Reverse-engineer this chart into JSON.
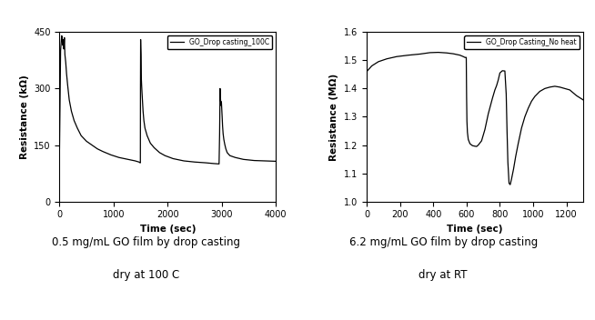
{
  "fig_width": 6.54,
  "fig_height": 3.52,
  "fig_bg_color": "#c8c8c8",
  "plot_bg_color": "#e8e8e8",
  "left_plot": {
    "legend_label": "GO_Drop casting_100C",
    "xlabel": "Time (sec)",
    "ylabel": "Resistance (kΩ)",
    "xlim": [
      0,
      4000
    ],
    "ylim": [
      0,
      450
    ],
    "xticks": [
      0,
      1000,
      2000,
      3000,
      4000
    ],
    "yticks": [
      0,
      150,
      300,
      450
    ],
    "caption_line1": "0.5 mg/mL GO film by drop casting",
    "caption_line2": "dry at 100 C"
  },
  "right_plot": {
    "legend_label": "GO_Drop Casting_No heat",
    "xlabel": "Time (sec)",
    "ylabel": "Resistance (MΩ)",
    "xlim": [
      0,
      1300
    ],
    "ylim": [
      1.0,
      1.6
    ],
    "xticks": [
      0,
      200,
      400,
      600,
      800,
      1000,
      1200
    ],
    "yticks": [
      1.0,
      1.1,
      1.2,
      1.3,
      1.4,
      1.5,
      1.6
    ],
    "caption_line1": "6.2 mg/mL GO film by drop casting",
    "caption_line2": "dry at RT"
  }
}
